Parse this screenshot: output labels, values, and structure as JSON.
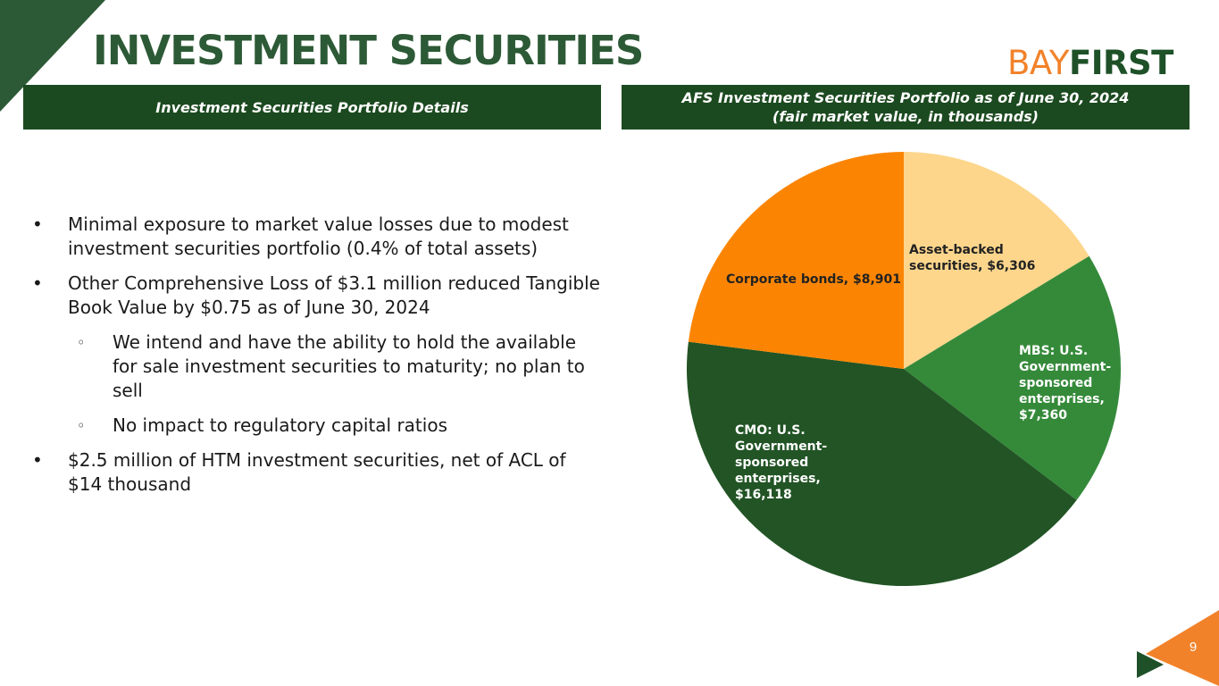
{
  "title": "INVESTMENT SECURITIES",
  "logo": {
    "part1": "BAY",
    "part2": "FIRST"
  },
  "banners": {
    "left": "Investment Securities Portfolio Details",
    "right_line1": "AFS Investment Securities Portfolio as of June 30, 2024",
    "right_line2": "(fair market value, in thousands)"
  },
  "bullets": [
    {
      "level": 1,
      "marker": "•",
      "text": "Minimal exposure to market value losses due to modest investment securities portfolio (0.4% of total assets)"
    },
    {
      "level": 1,
      "marker": "•",
      "text": "Other Comprehensive Loss of $3.1 million reduced Tangible Book Value by $0.75 as of June 30, 2024"
    },
    {
      "level": 2,
      "marker": "◦",
      "text": "We intend and have the ability to hold the available for sale investment securities to maturity; no plan to sell"
    },
    {
      "level": 2,
      "marker": "◦",
      "text": "No impact to regulatory capital ratios"
    },
    {
      "level": 1,
      "marker": "•",
      "text": "$2.5 million of HTM investment securities, net of ACL of $14 thousand"
    }
  ],
  "chart_data": {
    "type": "pie",
    "start_angle_deg": 0,
    "direction": "clockwise",
    "slices": [
      {
        "name": "Asset-backed securities",
        "value": 6306,
        "color": "#fdd68c",
        "label_lines": [
          "Asset-backed",
          "securities, $6,306"
        ]
      },
      {
        "name": "MBS: U.S. Government-sponsored enterprises",
        "value": 7360,
        "color": "#358a3a",
        "label_lines": [
          "MBS: U.S.",
          "Government-",
          "sponsored",
          "enterprises,",
          "$7,360"
        ]
      },
      {
        "name": "CMO: U.S. Government-sponsored enterprises",
        "value": 16118,
        "color": "#225425",
        "label_lines": [
          "CMO: U.S.",
          "Government-",
          "sponsored",
          "enterprises,",
          "$16,118"
        ]
      },
      {
        "name": "Corporate bonds",
        "value": 8901,
        "color": "#fb8503",
        "label_lines": [
          "Corporate bonds, $8,901"
        ]
      }
    ]
  },
  "colors": {
    "title": "#2d5a36",
    "banner": "#1c4a20",
    "accent_orange": "#f2822a"
  },
  "page_number": "9"
}
